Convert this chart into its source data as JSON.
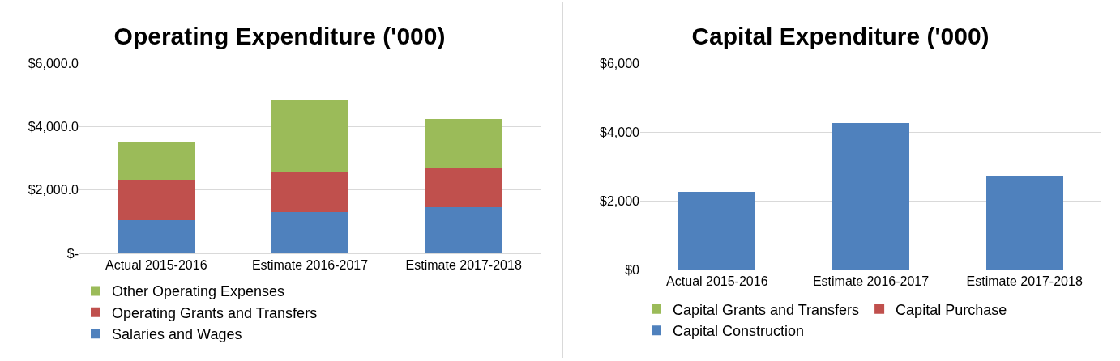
{
  "chart_data": [
    {
      "type": "bar",
      "title": "Operating Expenditure ('000)",
      "categories": [
        "Actual 2015-2016",
        "Estimate 2016-2017",
        "Estimate 2017-2018"
      ],
      "stacked": true,
      "series": [
        {
          "name": "Salaries and Wages",
          "color": "#4f81bd",
          "values": [
            1050,
            1300,
            1450
          ]
        },
        {
          "name": "Operating Grants and Transfers",
          "color": "#c0504d",
          "values": [
            1250,
            1250,
            1250
          ]
        },
        {
          "name": "Other Operating Expenses",
          "color": "#9bbb59",
          "values": [
            1200,
            2300,
            1550
          ]
        }
      ],
      "ylim": [
        0,
        6000
      ],
      "yticks": [
        {
          "value": 0,
          "label": "$-"
        },
        {
          "value": 2000,
          "label": "$2,000.0"
        },
        {
          "value": 4000,
          "label": "$4,000.0"
        },
        {
          "value": 6000,
          "label": "$6,000.0"
        }
      ],
      "grid": "y",
      "legend": "bottom"
    },
    {
      "type": "bar",
      "title": "Capital Expenditure ('000)",
      "categories": [
        "Actual 2015-2016",
        "Estimate 2016-2017",
        "Estimate 2017-2018"
      ],
      "stacked": true,
      "series": [
        {
          "name": "Capital Construction",
          "color": "#4f81bd",
          "values": [
            2250,
            4250,
            2700
          ]
        },
        {
          "name": "Capital Purchase",
          "color": "#c0504d",
          "values": [
            0,
            0,
            0
          ]
        },
        {
          "name": "Capital Grants and Transfers",
          "color": "#9bbb59",
          "values": [
            0,
            0,
            0
          ]
        }
      ],
      "ylim": [
        0,
        6000
      ],
      "yticks": [
        {
          "value": 0,
          "label": "$0"
        },
        {
          "value": 2000,
          "label": "$2,000"
        },
        {
          "value": 4000,
          "label": "$4,000"
        },
        {
          "value": 6000,
          "label": "$6,000"
        }
      ],
      "grid": "y",
      "legend": "bottom"
    }
  ]
}
